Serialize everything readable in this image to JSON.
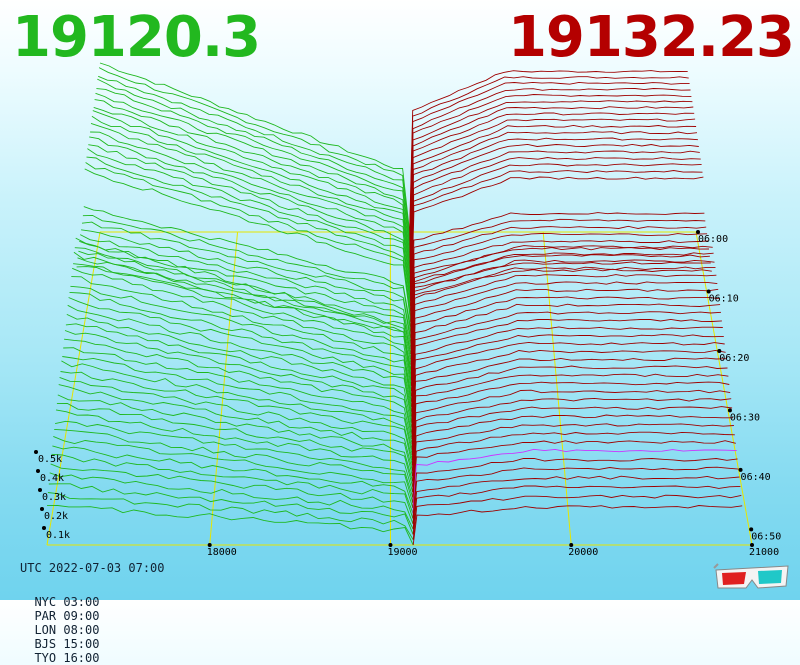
{
  "header": {
    "bid": "19120.3",
    "ask": "19132.23"
  },
  "chart_data": {
    "type": "3d-depth-chart",
    "x_axis": {
      "ticks": [
        "18000",
        "19000",
        "20000",
        "21000"
      ],
      "range": [
        17100,
        21000
      ]
    },
    "time_axis": {
      "ticks": [
        "06:00",
        "06:10",
        "06:20",
        "06:30",
        "06:40",
        "06:50"
      ]
    },
    "volume_axis": {
      "ticks": [
        "0.1k",
        "0.2k",
        "0.3k",
        "0.4k",
        "0.5k"
      ]
    },
    "mid_price": 19126,
    "bid_color": "#1fb81f",
    "ask_color": "#9e0000",
    "latest_color": "#cc33ff",
    "frame_color": "#e6e600",
    "snapshot_count": 60
  },
  "footer": {
    "utc": "UTC 2022-07-03 07:00",
    "zones": [
      "NYC 03:00",
      "PAR 09:00",
      "LON 08:00",
      "BJS 15:00",
      "TYO 16:00"
    ]
  },
  "icons": {
    "glasses": "3d-glasses-icon"
  }
}
